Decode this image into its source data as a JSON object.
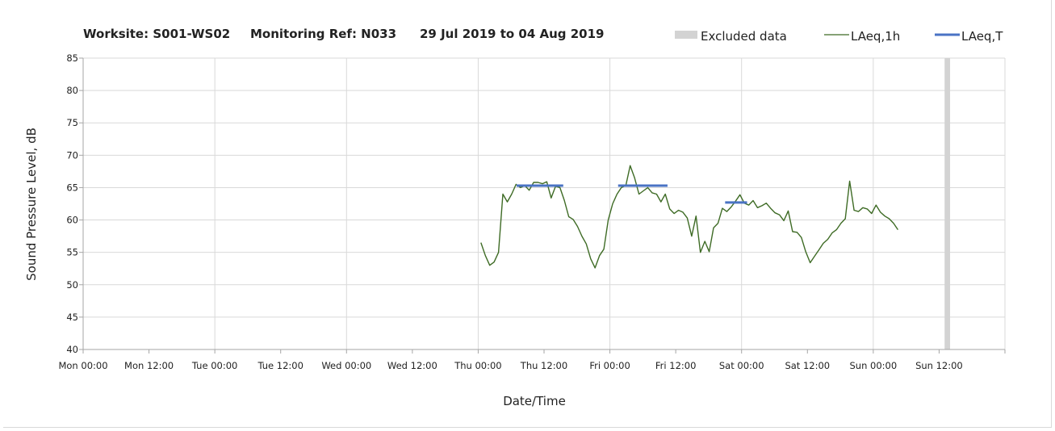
{
  "header": {
    "worksite": "Worksite: S001-WS02",
    "monitoring_ref": "Monitoring Ref: N033",
    "date_range": "29 Jul 2019 to 04 Aug 2019"
  },
  "legend": {
    "excluded": "Excluded data",
    "laeq_1h": "LAeq,1h",
    "laeq_t": "LAeq,T"
  },
  "colors": {
    "laeq_1h": "#3e6b25",
    "laeq_t": "#4a73c4",
    "excluded": "#d3d3d3",
    "grid": "#d9d9d9",
    "axis": "#a6a6a6"
  },
  "chart_data": {
    "type": "line",
    "xlabel": "Date/Time",
    "ylabel": "Sound Pressure Level, dB",
    "ylim": [
      40,
      85
    ],
    "yticks": [
      40,
      45,
      50,
      55,
      60,
      65,
      70,
      75,
      80,
      85
    ],
    "xlim_hours": [
      0,
      168
    ],
    "xticks": [
      {
        "h": 0,
        "label": "Mon 00:00"
      },
      {
        "h": 12,
        "label": "Mon 12:00"
      },
      {
        "h": 24,
        "label": "Tue 00:00"
      },
      {
        "h": 36,
        "label": "Tue 12:00"
      },
      {
        "h": 48,
        "label": "Wed 00:00"
      },
      {
        "h": 60,
        "label": "Wed 12:00"
      },
      {
        "h": 72,
        "label": "Thu 00:00"
      },
      {
        "h": 84,
        "label": "Thu 12:00"
      },
      {
        "h": 96,
        "label": "Fri 00:00"
      },
      {
        "h": 108,
        "label": "Fri 12:00"
      },
      {
        "h": 120,
        "label": "Sat 00:00"
      },
      {
        "h": 132,
        "label": "Sat 12:00"
      },
      {
        "h": 144,
        "label": "Sun 00:00"
      },
      {
        "h": 156,
        "label": "Sun 12:00"
      },
      {
        "h": 168,
        "label": ""
      }
    ],
    "gridlines": {
      "vertical_every_hours": 24,
      "horizontal": true
    },
    "legend_position": "top-right",
    "excluded_ranges": [
      [
        157.0,
        158.0
      ]
    ],
    "series": [
      {
        "name": "LAeq,1h",
        "points": [
          [
            72.5,
            56.5
          ],
          [
            73.3,
            54.5
          ],
          [
            74.1,
            53.0
          ],
          [
            74.9,
            53.5
          ],
          [
            75.7,
            55.0
          ],
          [
            76.5,
            64.0
          ],
          [
            77.3,
            62.8
          ],
          [
            78.1,
            64.0
          ],
          [
            78.9,
            65.5
          ],
          [
            79.7,
            65.0
          ],
          [
            80.5,
            65.3
          ],
          [
            81.3,
            64.6
          ],
          [
            82.1,
            65.8
          ],
          [
            82.9,
            65.8
          ],
          [
            83.7,
            65.6
          ],
          [
            84.5,
            65.9
          ],
          [
            85.3,
            63.4
          ],
          [
            86.1,
            65.2
          ],
          [
            86.9,
            65.0
          ],
          [
            87.7,
            63.0
          ],
          [
            88.5,
            60.5
          ],
          [
            89.3,
            60.1
          ],
          [
            90.1,
            59.0
          ],
          [
            90.9,
            57.5
          ],
          [
            91.7,
            56.3
          ],
          [
            92.5,
            54.0
          ],
          [
            93.3,
            52.6
          ],
          [
            94.1,
            54.5
          ],
          [
            94.9,
            55.5
          ],
          [
            95.7,
            60.0
          ],
          [
            96.5,
            62.5
          ],
          [
            97.3,
            64.0
          ],
          [
            98.1,
            65.0
          ],
          [
            98.9,
            65.3
          ],
          [
            99.7,
            68.4
          ],
          [
            100.5,
            66.5
          ],
          [
            101.3,
            64.0
          ],
          [
            102.1,
            64.5
          ],
          [
            102.9,
            65.0
          ],
          [
            103.7,
            64.2
          ],
          [
            104.5,
            64.0
          ],
          [
            105.3,
            62.8
          ],
          [
            106.1,
            64.0
          ],
          [
            106.9,
            61.7
          ],
          [
            107.7,
            61.0
          ],
          [
            108.5,
            61.5
          ],
          [
            109.3,
            61.2
          ],
          [
            110.1,
            60.3
          ],
          [
            110.9,
            57.5
          ],
          [
            111.7,
            60.6
          ],
          [
            112.5,
            55.0
          ],
          [
            113.3,
            56.7
          ],
          [
            114.1,
            55.1
          ],
          [
            114.9,
            58.8
          ],
          [
            115.7,
            59.5
          ],
          [
            116.5,
            61.8
          ],
          [
            117.3,
            61.3
          ],
          [
            118.1,
            62.0
          ],
          [
            118.9,
            62.9
          ],
          [
            119.7,
            63.9
          ],
          [
            120.5,
            62.6
          ],
          [
            121.3,
            62.3
          ],
          [
            122.1,
            63.0
          ],
          [
            122.9,
            61.9
          ],
          [
            123.7,
            62.2
          ],
          [
            124.5,
            62.6
          ],
          [
            125.3,
            61.8
          ],
          [
            126.1,
            61.1
          ],
          [
            126.9,
            60.8
          ],
          [
            127.7,
            59.9
          ],
          [
            128.5,
            61.4
          ],
          [
            129.3,
            58.2
          ],
          [
            130.1,
            58.1
          ],
          [
            130.9,
            57.3
          ],
          [
            131.7,
            55.1
          ],
          [
            132.5,
            53.4
          ],
          [
            133.3,
            54.4
          ],
          [
            134.1,
            55.4
          ],
          [
            134.9,
            56.4
          ],
          [
            135.7,
            57.0
          ],
          [
            136.5,
            58.0
          ],
          [
            137.3,
            58.5
          ],
          [
            138.1,
            59.5
          ],
          [
            138.9,
            60.2
          ],
          [
            139.7,
            66.0
          ],
          [
            140.5,
            61.5
          ],
          [
            141.3,
            61.3
          ],
          [
            142.1,
            61.9
          ],
          [
            142.9,
            61.7
          ],
          [
            143.7,
            61.0
          ],
          [
            144.5,
            62.3
          ],
          [
            145.3,
            61.2
          ],
          [
            146.1,
            60.6
          ],
          [
            146.9,
            60.2
          ],
          [
            147.7,
            59.5
          ],
          [
            148.5,
            58.5
          ]
        ]
      },
      {
        "name": "LAeq,T",
        "segments": [
          {
            "x0": 79.0,
            "x1": 87.5,
            "y": 65.3
          },
          {
            "x0": 97.5,
            "x1": 106.5,
            "y": 65.3
          },
          {
            "x0": 117.0,
            "x1": 121.0,
            "y": 62.7
          }
        ]
      }
    ]
  }
}
